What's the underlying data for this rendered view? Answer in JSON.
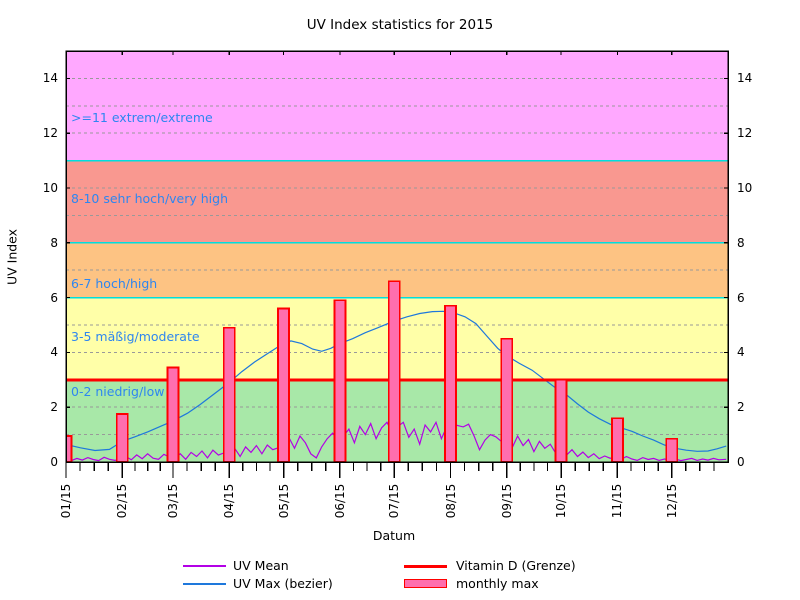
{
  "title": "UV Index statistics for 2015",
  "axes": {
    "y_label": "UV Index",
    "x_label": "Datum",
    "y_ticks": [
      0,
      2,
      4,
      6,
      8,
      10,
      12,
      14
    ],
    "y_range": [
      0,
      15
    ],
    "x_tick_labels": [
      "01/15",
      "02/15",
      "03/15",
      "04/15",
      "05/15",
      "06/15",
      "07/15",
      "08/15",
      "09/15",
      "10/15",
      "11/15",
      "12/15"
    ],
    "month_start_days": [
      0,
      31,
      59,
      90,
      120,
      151,
      181,
      212,
      243,
      273,
      304,
      334
    ],
    "days_in_year": 365
  },
  "colors": {
    "background": "#ffffff",
    "axis_text": "#000000",
    "grid_dashed": "#999999",
    "band_boundary": "#00dede",
    "band_label_text": "#2e86f0",
    "bar_fill": "#ff6eae",
    "bar_border": "#ff0000",
    "uv_mean": "#b300e6",
    "uv_max": "#1e78dc",
    "vitamin_d": "#ff0000",
    "border": "#000000"
  },
  "chart_data": {
    "type": "line",
    "title": "UV Index statistics for 2015",
    "xlabel": "Datum",
    "ylabel": "UV Index",
    "x_unit": "day_of_year_2015",
    "ylim": [
      0,
      15
    ],
    "grid": {
      "dashed_at": [
        1,
        2,
        4,
        5,
        7,
        9,
        10,
        12,
        13,
        14
      ],
      "solid_cyan_at": [
        6,
        8,
        11
      ],
      "legend_position": "bottom"
    },
    "bands": [
      {
        "label": "0-2 niedrig/low",
        "from": 0,
        "to": 3,
        "color": "#a8e8a8",
        "label_at": 2.55
      },
      {
        "label": "3-5 mäßig/moderate",
        "from": 3,
        "to": 6,
        "color": "#ffffa8",
        "label_at": 4.55
      },
      {
        "label": "6-7 hoch/high",
        "from": 6,
        "to": 8,
        "color": "#fdc383",
        "label_at": 6.5
      },
      {
        "label": "8-10 sehr hoch/very high",
        "from": 8,
        "to": 11,
        "color": "#f99890",
        "label_at": 9.6
      },
      {
        "label": ">=11 extrem/extreme",
        "from": 11,
        "to": 15,
        "color": "#ffa8ff",
        "label_at": 12.55
      }
    ],
    "categories": [
      "01/15",
      "02/15",
      "03/15",
      "04/15",
      "05/15",
      "06/15",
      "07/15",
      "08/15",
      "09/15",
      "10/15",
      "11/15",
      "12/15"
    ],
    "series": [
      {
        "name": "monthly max",
        "type": "bar",
        "fill": "#ff6eae",
        "border": "#ff0000",
        "values": [
          0.95,
          1.75,
          3.45,
          4.9,
          5.6,
          5.9,
          6.6,
          5.7,
          4.5,
          3.0,
          1.6,
          0.85
        ]
      },
      {
        "name": "Vitamin D (Grenze)",
        "type": "hline",
        "color": "#ff0000",
        "value": 3
      },
      {
        "name": "UV Max (bezier)",
        "type": "line",
        "color": "#1e78dc",
        "points": [
          [
            0,
            0.64
          ],
          [
            8,
            0.52
          ],
          [
            16,
            0.42
          ],
          [
            24,
            0.46
          ],
          [
            31,
            0.75
          ],
          [
            38,
            0.92
          ],
          [
            45,
            1.1
          ],
          [
            52,
            1.3
          ],
          [
            59,
            1.5
          ],
          [
            67,
            1.78
          ],
          [
            74,
            2.1
          ],
          [
            82,
            2.5
          ],
          [
            90,
            2.9
          ],
          [
            97,
            3.3
          ],
          [
            104,
            3.65
          ],
          [
            111,
            3.95
          ],
          [
            118,
            4.25
          ],
          [
            124,
            4.42
          ],
          [
            130,
            4.32
          ],
          [
            136,
            4.12
          ],
          [
            141,
            4.04
          ],
          [
            146,
            4.15
          ],
          [
            151,
            4.32
          ],
          [
            158,
            4.5
          ],
          [
            165,
            4.72
          ],
          [
            172,
            4.9
          ],
          [
            181,
            5.15
          ],
          [
            188,
            5.3
          ],
          [
            195,
            5.42
          ],
          [
            202,
            5.49
          ],
          [
            208,
            5.5
          ],
          [
            214,
            5.44
          ],
          [
            220,
            5.3
          ],
          [
            226,
            5.05
          ],
          [
            232,
            4.6
          ],
          [
            238,
            4.15
          ],
          [
            243,
            3.88
          ],
          [
            250,
            3.6
          ],
          [
            257,
            3.35
          ],
          [
            264,
            3.0
          ],
          [
            270,
            2.7
          ],
          [
            276,
            2.45
          ],
          [
            282,
            2.12
          ],
          [
            288,
            1.82
          ],
          [
            294,
            1.58
          ],
          [
            300,
            1.38
          ],
          [
            306,
            1.25
          ],
          [
            312,
            1.12
          ],
          [
            318,
            0.95
          ],
          [
            324,
            0.8
          ],
          [
            330,
            0.62
          ],
          [
            336,
            0.5
          ],
          [
            342,
            0.43
          ],
          [
            348,
            0.39
          ],
          [
            354,
            0.4
          ],
          [
            359,
            0.48
          ],
          [
            364,
            0.58
          ]
        ]
      },
      {
        "name": "UV Mean",
        "type": "line",
        "color": "#b300e6",
        "points": [
          [
            0,
            0.08
          ],
          [
            3,
            0.05
          ],
          [
            6,
            0.13
          ],
          [
            9,
            0.07
          ],
          [
            12,
            0.16
          ],
          [
            15,
            0.09
          ],
          [
            18,
            0.05
          ],
          [
            21,
            0.17
          ],
          [
            24,
            0.1
          ],
          [
            27,
            0.06
          ],
          [
            30,
            0.12
          ],
          [
            33,
            0.2
          ],
          [
            36,
            0.08
          ],
          [
            39,
            0.26
          ],
          [
            42,
            0.12
          ],
          [
            45,
            0.3
          ],
          [
            48,
            0.14
          ],
          [
            51,
            0.1
          ],
          [
            54,
            0.28
          ],
          [
            57,
            0.18
          ],
          [
            60,
            0.14
          ],
          [
            63,
            0.3
          ],
          [
            66,
            0.1
          ],
          [
            69,
            0.35
          ],
          [
            72,
            0.2
          ],
          [
            75,
            0.4
          ],
          [
            78,
            0.15
          ],
          [
            81,
            0.43
          ],
          [
            84,
            0.25
          ],
          [
            87,
            0.33
          ],
          [
            90,
            0.28
          ],
          [
            93,
            0.5
          ],
          [
            96,
            0.2
          ],
          [
            99,
            0.55
          ],
          [
            102,
            0.35
          ],
          [
            105,
            0.6
          ],
          [
            108,
            0.3
          ],
          [
            111,
            0.62
          ],
          [
            114,
            0.45
          ],
          [
            117,
            0.52
          ],
          [
            120,
            0.6
          ],
          [
            123,
            0.88
          ],
          [
            126,
            0.5
          ],
          [
            129,
            0.95
          ],
          [
            132,
            0.7
          ],
          [
            135,
            0.3
          ],
          [
            138,
            0.15
          ],
          [
            141,
            0.55
          ],
          [
            144,
            0.85
          ],
          [
            147,
            1.05
          ],
          [
            150,
            0.8
          ],
          [
            153,
            0.95
          ],
          [
            156,
            1.2
          ],
          [
            159,
            0.7
          ],
          [
            162,
            1.3
          ],
          [
            165,
            1.0
          ],
          [
            168,
            1.4
          ],
          [
            171,
            0.85
          ],
          [
            174,
            1.25
          ],
          [
            177,
            1.45
          ],
          [
            180,
            1.05
          ],
          [
            183,
            1.3
          ],
          [
            186,
            1.45
          ],
          [
            189,
            0.9
          ],
          [
            192,
            1.2
          ],
          [
            195,
            0.65
          ],
          [
            198,
            1.35
          ],
          [
            201,
            1.1
          ],
          [
            204,
            1.45
          ],
          [
            207,
            0.85
          ],
          [
            210,
            1.3
          ],
          [
            213,
            1.4
          ],
          [
            216,
            1.33
          ],
          [
            219,
            1.28
          ],
          [
            222,
            1.38
          ],
          [
            225,
            0.95
          ],
          [
            228,
            0.45
          ],
          [
            231,
            0.8
          ],
          [
            234,
            1.0
          ],
          [
            237,
            0.92
          ],
          [
            240,
            0.75
          ],
          [
            243,
            0.9
          ],
          [
            246,
            0.52
          ],
          [
            249,
            0.95
          ],
          [
            252,
            0.6
          ],
          [
            255,
            0.82
          ],
          [
            258,
            0.38
          ],
          [
            261,
            0.75
          ],
          [
            264,
            0.5
          ],
          [
            267,
            0.65
          ],
          [
            270,
            0.32
          ],
          [
            273,
            0.42
          ],
          [
            276,
            0.25
          ],
          [
            279,
            0.45
          ],
          [
            282,
            0.2
          ],
          [
            285,
            0.36
          ],
          [
            288,
            0.16
          ],
          [
            291,
            0.3
          ],
          [
            294,
            0.12
          ],
          [
            297,
            0.22
          ],
          [
            300,
            0.14
          ],
          [
            303,
            0.16
          ],
          [
            306,
            0.09
          ],
          [
            309,
            0.2
          ],
          [
            312,
            0.11
          ],
          [
            315,
            0.06
          ],
          [
            318,
            0.16
          ],
          [
            321,
            0.09
          ],
          [
            324,
            0.13
          ],
          [
            327,
            0.06
          ],
          [
            330,
            0.11
          ],
          [
            333,
            0.06
          ],
          [
            336,
            0.11
          ],
          [
            339,
            0.05
          ],
          [
            342,
            0.09
          ],
          [
            345,
            0.13
          ],
          [
            348,
            0.06
          ],
          [
            351,
            0.11
          ],
          [
            354,
            0.07
          ],
          [
            357,
            0.13
          ],
          [
            360,
            0.08
          ],
          [
            364,
            0.1
          ]
        ]
      }
    ]
  },
  "legend": {
    "items": [
      {
        "label": "UV Mean",
        "swatch": "line",
        "color": "#b300e6",
        "col": 0,
        "row": 0
      },
      {
        "label": "UV Max (bezier)",
        "swatch": "line",
        "color": "#1e78dc",
        "col": 0,
        "row": 1
      },
      {
        "label": "Vitamin D (Grenze)",
        "swatch": "thick-line",
        "color": "#ff0000",
        "col": 1,
        "row": 0
      },
      {
        "label": "monthly max",
        "swatch": "box",
        "color": "#ff6eae",
        "border": "#ff0000",
        "col": 1,
        "row": 1
      }
    ]
  }
}
